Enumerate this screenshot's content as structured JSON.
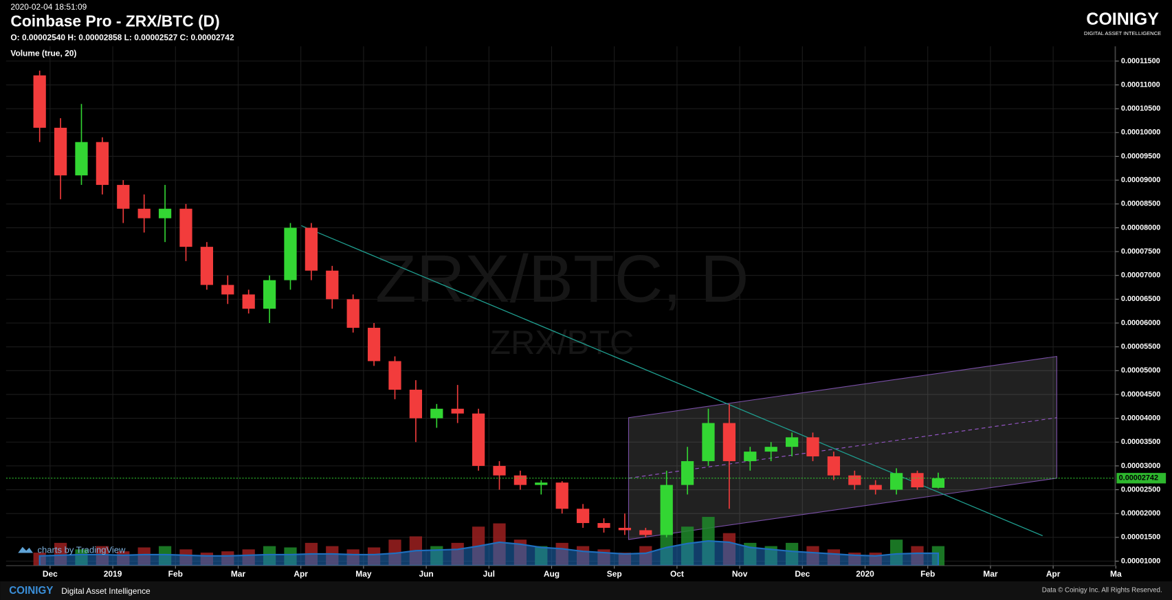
{
  "header": {
    "timestamp": "2020-02-04 18:51:09",
    "title": "Coinbase Pro - ZRX/BTC (D)",
    "ohlc": "O: 0.00002540 H: 0.00002858 L: 0.00002527 C: 0.00002742",
    "indicator": "Volume (true, 20)",
    "logo": "COINIGY",
    "tagline": "DIGITAL ASSET INTELLIGENCE"
  },
  "footer": {
    "logo": "COINIGY",
    "tagline": "Digital Asset Intelligence",
    "credit": "charts by TradingView",
    "copyright": "Data © Coinigy Inc.  All Rights Reserved."
  },
  "chart_data": {
    "type": "candlestick",
    "watermark": "ZRX/BTC, D",
    "watermark_sub": "ZRX/BTC",
    "up_color": "#33d633",
    "down_color": "#f23c3c",
    "volume_up_color": "#1f8a2a",
    "volume_down_color": "#9c2020",
    "volume_ma_color": "#1f6fbf",
    "grid": true,
    "ylim": [
      9.06e-06,
      0.0001181
    ],
    "yticks": [
      {
        "value": 1e-05,
        "label": "0.00001000"
      },
      {
        "value": 1.5e-05,
        "label": "0.00001500"
      },
      {
        "value": 2e-05,
        "label": "0.00002000"
      },
      {
        "value": 2.5e-05,
        "label": "0.00002500"
      },
      {
        "value": 3e-05,
        "label": "0.00003000"
      },
      {
        "value": 3.5e-05,
        "label": "0.00003500"
      },
      {
        "value": 4e-05,
        "label": "0.00004000"
      },
      {
        "value": 4.5e-05,
        "label": "0.00004500"
      },
      {
        "value": 5e-05,
        "label": "0.00005000"
      },
      {
        "value": 5.5e-05,
        "label": "0.00005500"
      },
      {
        "value": 6e-05,
        "label": "0.00006000"
      },
      {
        "value": 6.5e-05,
        "label": "0.00006500"
      },
      {
        "value": 7e-05,
        "label": "0.00007000"
      },
      {
        "value": 7.5e-05,
        "label": "0.00007500"
      },
      {
        "value": 8e-05,
        "label": "0.00008000"
      },
      {
        "value": 8.5e-05,
        "label": "0.00008500"
      },
      {
        "value": 9e-05,
        "label": "0.00009000"
      },
      {
        "value": 9.5e-05,
        "label": "0.00009500"
      },
      {
        "value": 0.0001,
        "label": "0.00010000"
      },
      {
        "value": 0.000105,
        "label": "0.00010500"
      },
      {
        "value": 0.00011,
        "label": "0.00011000"
      },
      {
        "value": 0.000115,
        "label": "0.00011500"
      }
    ],
    "xlim": [
      "2018-11",
      "2020-05"
    ],
    "xticks": [
      {
        "value": "2018-12",
        "label": "Dec"
      },
      {
        "value": "2019-01",
        "label": "2019"
      },
      {
        "value": "2019-02",
        "label": "Feb"
      },
      {
        "value": "2019-03",
        "label": "Mar"
      },
      {
        "value": "2019-04",
        "label": "Apr"
      },
      {
        "value": "2019-05",
        "label": "May"
      },
      {
        "value": "2019-06",
        "label": "Jun"
      },
      {
        "value": "2019-07",
        "label": "Jul"
      },
      {
        "value": "2019-08",
        "label": "Aug"
      },
      {
        "value": "2019-09",
        "label": "Sep"
      },
      {
        "value": "2019-10",
        "label": "Oct"
      },
      {
        "value": "2019-11",
        "label": "Nov"
      },
      {
        "value": "2019-12",
        "label": "Dec"
      },
      {
        "value": "2020-01",
        "label": "2020"
      },
      {
        "value": "2020-02",
        "label": "Feb"
      },
      {
        "value": "2020-03",
        "label": "Mar"
      },
      {
        "value": "2020-04",
        "label": "Apr"
      },
      {
        "value": "2020-05",
        "label": "Ma"
      }
    ],
    "last_price": {
      "value": 2.742e-05,
      "label": "0.00002742"
    },
    "volume_ylim": [
      0,
      100
    ],
    "candles": [
      {
        "x": "2018-11",
        "o": 0.000112,
        "h": 0.000113,
        "l": 9.8e-05,
        "c": 0.000101
      },
      {
        "x": "2018-12",
        "o": 0.000101,
        "h": 0.000103,
        "l": 8.6e-05,
        "c": 9.1e-05
      },
      {
        "x": "2018-12",
        "o": 9.1e-05,
        "h": 0.000106,
        "l": 8.9e-05,
        "c": 9.8e-05
      },
      {
        "x": "2018-12",
        "o": 9.8e-05,
        "h": 9.9e-05,
        "l": 8.7e-05,
        "c": 8.9e-05
      },
      {
        "x": "2019-01",
        "o": 8.9e-05,
        "h": 9e-05,
        "l": 8.1e-05,
        "c": 8.4e-05
      },
      {
        "x": "2019-01",
        "o": 8.4e-05,
        "h": 8.7e-05,
        "l": 7.9e-05,
        "c": 8.2e-05
      },
      {
        "x": "2019-01",
        "o": 8.2e-05,
        "h": 8.9e-05,
        "l": 7.7e-05,
        "c": 8.4e-05
      },
      {
        "x": "2019-02",
        "o": 8.4e-05,
        "h": 8.5e-05,
        "l": 7.3e-05,
        "c": 7.6e-05
      },
      {
        "x": "2019-02",
        "o": 7.6e-05,
        "h": 7.7e-05,
        "l": 6.7e-05,
        "c": 6.8e-05
      },
      {
        "x": "2019-02",
        "o": 6.8e-05,
        "h": 7e-05,
        "l": 6.4e-05,
        "c": 6.6e-05
      },
      {
        "x": "2019-03",
        "o": 6.6e-05,
        "h": 6.7e-05,
        "l": 6.2e-05,
        "c": 6.3e-05
      },
      {
        "x": "2019-03",
        "o": 6.3e-05,
        "h": 7e-05,
        "l": 6e-05,
        "c": 6.9e-05
      },
      {
        "x": "2019-03",
        "o": 6.9e-05,
        "h": 8.1e-05,
        "l": 6.7e-05,
        "c": 8e-05
      },
      {
        "x": "2019-04",
        "o": 8e-05,
        "h": 8.1e-05,
        "l": 6.9e-05,
        "c": 7.1e-05
      },
      {
        "x": "2019-04",
        "o": 7.1e-05,
        "h": 7.2e-05,
        "l": 6.3e-05,
        "c": 6.5e-05
      },
      {
        "x": "2019-04",
        "o": 6.5e-05,
        "h": 6.6e-05,
        "l": 5.8e-05,
        "c": 5.9e-05
      },
      {
        "x": "2019-05",
        "o": 5.9e-05,
        "h": 6e-05,
        "l": 5.1e-05,
        "c": 5.2e-05
      },
      {
        "x": "2019-05",
        "o": 5.2e-05,
        "h": 5.3e-05,
        "l": 4.4e-05,
        "c": 4.6e-05
      },
      {
        "x": "2019-05",
        "o": 4.6e-05,
        "h": 4.8e-05,
        "l": 3.5e-05,
        "c": 4e-05
      },
      {
        "x": "2019-06",
        "o": 4e-05,
        "h": 4.3e-05,
        "l": 3.8e-05,
        "c": 4.2e-05
      },
      {
        "x": "2019-06",
        "o": 4.2e-05,
        "h": 4.7e-05,
        "l": 3.9e-05,
        "c": 4.1e-05
      },
      {
        "x": "2019-06",
        "o": 4.1e-05,
        "h": 4.2e-05,
        "l": 2.9e-05,
        "c": 3e-05
      },
      {
        "x": "2019-07",
        "o": 3e-05,
        "h": 3.1e-05,
        "l": 2.5e-05,
        "c": 2.8e-05
      },
      {
        "x": "2019-07",
        "o": 2.8e-05,
        "h": 2.9e-05,
        "l": 2.5e-05,
        "c": 2.6e-05
      },
      {
        "x": "2019-07",
        "o": 2.6e-05,
        "h": 2.7e-05,
        "l": 2.4e-05,
        "c": 2.65e-05
      },
      {
        "x": "2019-08",
        "o": 2.65e-05,
        "h": 2.68e-05,
        "l": 2e-05,
        "c": 2.1e-05
      },
      {
        "x": "2019-08",
        "o": 2.1e-05,
        "h": 2.2e-05,
        "l": 1.7e-05,
        "c": 1.8e-05
      },
      {
        "x": "2019-08",
        "o": 1.8e-05,
        "h": 1.9e-05,
        "l": 1.6e-05,
        "c": 1.7e-05
      },
      {
        "x": "2019-09",
        "o": 1.7e-05,
        "h": 2e-05,
        "l": 1.55e-05,
        "c": 1.65e-05
      },
      {
        "x": "2019-09",
        "o": 1.65e-05,
        "h": 1.7e-05,
        "l": 1.5e-05,
        "c": 1.55e-05
      },
      {
        "x": "2019-09",
        "o": 1.55e-05,
        "h": 2.9e-05,
        "l": 1.5e-05,
        "c": 2.6e-05
      },
      {
        "x": "2019-10",
        "o": 2.6e-05,
        "h": 3.4e-05,
        "l": 2.4e-05,
        "c": 3.1e-05
      },
      {
        "x": "2019-10",
        "o": 3.1e-05,
        "h": 4.2e-05,
        "l": 3e-05,
        "c": 3.9e-05
      },
      {
        "x": "2019-10",
        "o": 3.9e-05,
        "h": 4.3e-05,
        "l": 2.1e-05,
        "c": 3.1e-05
      },
      {
        "x": "2019-11",
        "o": 3.1e-05,
        "h": 3.4e-05,
        "l": 2.9e-05,
        "c": 3.3e-05
      },
      {
        "x": "2019-11",
        "o": 3.3e-05,
        "h": 3.5e-05,
        "l": 3.1e-05,
        "c": 3.4e-05
      },
      {
        "x": "2019-11",
        "o": 3.4e-05,
        "h": 3.7e-05,
        "l": 3.2e-05,
        "c": 3.6e-05
      },
      {
        "x": "2019-12",
        "o": 3.6e-05,
        "h": 3.7e-05,
        "l": 3.1e-05,
        "c": 3.2e-05
      },
      {
        "x": "2019-12",
        "o": 3.2e-05,
        "h": 3.3e-05,
        "l": 2.7e-05,
        "c": 2.8e-05
      },
      {
        "x": "2019-12",
        "o": 2.8e-05,
        "h": 2.9e-05,
        "l": 2.5e-05,
        "c": 2.6e-05
      },
      {
        "x": "2020-01",
        "o": 2.6e-05,
        "h": 2.7e-05,
        "l": 2.4e-05,
        "c": 2.5e-05
      },
      {
        "x": "2020-01",
        "o": 2.5e-05,
        "h": 2.95e-05,
        "l": 2.4e-05,
        "c": 2.85e-05
      },
      {
        "x": "2020-01",
        "o": 2.85e-05,
        "h": 2.9e-05,
        "l": 2.5e-05,
        "c": 2.55e-05
      },
      {
        "x": "2020-02",
        "o": 2.54e-05,
        "h": 2.858e-05,
        "l": 2.527e-05,
        "c": 2.742e-05
      }
    ],
    "volume": [
      20,
      35,
      25,
      30,
      22,
      28,
      30,
      25,
      20,
      22,
      25,
      30,
      28,
      35,
      30,
      25,
      28,
      40,
      45,
      30,
      35,
      60,
      65,
      40,
      30,
      35,
      30,
      25,
      20,
      30,
      65,
      60,
      75,
      50,
      35,
      30,
      35,
      30,
      25,
      20,
      20,
      40,
      30,
      30
    ],
    "volume_ma": [
      15,
      16,
      17,
      17,
      16,
      17,
      17,
      16,
      15,
      15,
      16,
      17,
      17,
      18,
      18,
      17,
      17,
      19,
      23,
      24,
      25,
      30,
      36,
      33,
      28,
      26,
      22,
      20,
      18,
      19,
      28,
      34,
      38,
      36,
      28,
      25,
      22,
      20,
      18,
      16,
      15,
      18,
      19,
      19
    ]
  }
}
